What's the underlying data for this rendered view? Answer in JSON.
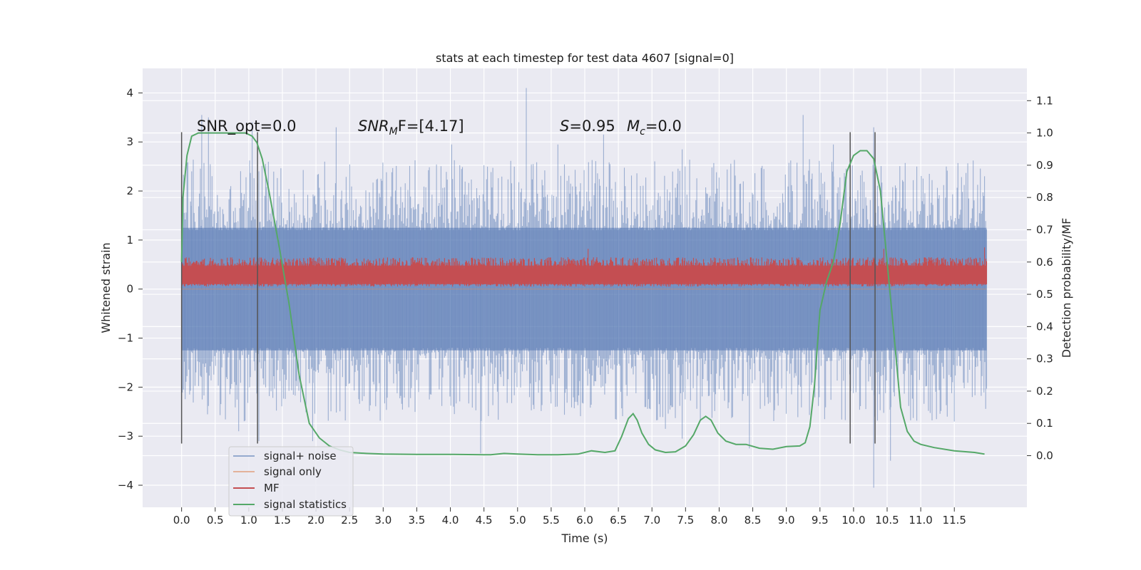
{
  "chart_data": {
    "type": "line",
    "title": "stats at each timestep for test data 4607 [signal=0]",
    "xlabel": "Time (s)",
    "ylabel": "Whitened strain",
    "y2label": "Detection probability/MF",
    "xlim": [
      -0.58,
      12.58
    ],
    "ylim": [
      -4.45,
      4.5
    ],
    "y2lim": [
      -0.16,
      1.2
    ],
    "grid": true,
    "legend_position": "lower-left",
    "x_ticks": [
      "0.0",
      "0.5",
      "1.0",
      "1.5",
      "2.0",
      "2.5",
      "3.0",
      "3.5",
      "4.0",
      "4.5",
      "5.0",
      "5.5",
      "6.0",
      "6.5",
      "7.0",
      "7.5",
      "8.0",
      "8.5",
      "9.0",
      "9.5",
      "10.0",
      "10.5",
      "11.0",
      "11.5"
    ],
    "y_ticks": [
      "4",
      "3",
      "2",
      "1",
      "0",
      "−1",
      "−2",
      "−3",
      "−4"
    ],
    "y2_ticks": [
      "1.1",
      "1.0",
      "0.9",
      "0.8",
      "0.7",
      "0.6",
      "0.5",
      "0.4",
      "0.3",
      "0.2",
      "0.1",
      "0.0"
    ],
    "annotations": {
      "snr_opt": "SNR_opt=0.0",
      "snr_mf_label": "SNR",
      "snr_mf_sub": "M",
      "snr_mf_rest": "F=[4.17]",
      "s_label": "S",
      "s_value": "=0.95",
      "mc_label": "M",
      "mc_sub": "c",
      "mc_value": "=0.0"
    },
    "legend": [
      {
        "label": "signal+ noise",
        "color": "#4c72b0"
      },
      {
        "label": "signal only",
        "color": "#dd8452"
      },
      {
        "label": "MF",
        "color": "#c44e52"
      },
      {
        "label": "signal statistics",
        "color": "#55a868"
      }
    ],
    "series": [
      {
        "name": "signal+ noise",
        "axis": "left",
        "color": "#4c72b0",
        "band_core": [
          -1.25,
          1.25
        ],
        "upper_spikes": [
          [
            0.0,
            2.2
          ],
          [
            0.15,
            2.4
          ],
          [
            0.3,
            3.55
          ],
          [
            0.4,
            3.5
          ],
          [
            1.05,
            3.4
          ],
          [
            1.15,
            2.4
          ],
          [
            2.3,
            3.3
          ],
          [
            4.02,
            2.95
          ],
          [
            5.13,
            4.1
          ],
          [
            5.6,
            2.95
          ],
          [
            6.28,
            3.15
          ],
          [
            7.45,
            2.85
          ],
          [
            9.25,
            3.55
          ],
          [
            9.7,
            2.95
          ],
          [
            10.3,
            3.3
          ],
          [
            11.7,
            2.35
          ],
          [
            11.95,
            2.3
          ]
        ],
        "lower_spikes": [
          [
            0.05,
            -2.1
          ],
          [
            0.85,
            -2.9
          ],
          [
            1.15,
            -3.1
          ],
          [
            1.95,
            -3.1
          ],
          [
            4.45,
            -3.35
          ],
          [
            7.2,
            -2.85
          ],
          [
            7.45,
            -3.05
          ],
          [
            8.45,
            -3.25
          ],
          [
            10.3,
            -4.05
          ],
          [
            10.55,
            -3.5
          ],
          [
            11.5,
            -2.7
          ]
        ]
      },
      {
        "name": "signal only",
        "axis": "left",
        "color": "#dd8452",
        "values": "flat at 0"
      },
      {
        "name": "MF",
        "axis": "left",
        "color": "#c44e52",
        "band": [
          0.05,
          0.65
        ],
        "peaks": [
          [
            0.0,
            0.75
          ],
          [
            6.05,
            0.82
          ],
          [
            10.45,
            0.82
          ],
          [
            11.95,
            0.85
          ]
        ]
      },
      {
        "name": "signal statistics",
        "axis": "right",
        "color": "#55a868",
        "x": [
          0.0,
          0.02,
          0.08,
          0.15,
          0.25,
          0.4,
          0.6,
          0.8,
          0.95,
          1.05,
          1.12,
          1.2,
          1.3,
          1.45,
          1.6,
          1.75,
          1.9,
          2.05,
          2.2,
          2.35,
          2.5,
          2.75,
          3.0,
          3.5,
          4.0,
          4.5,
          4.6,
          4.8,
          5.0,
          5.3,
          5.6,
          5.9,
          6.1,
          6.3,
          6.45,
          6.55,
          6.65,
          6.72,
          6.78,
          6.85,
          6.95,
          7.05,
          7.2,
          7.35,
          7.5,
          7.62,
          7.72,
          7.8,
          7.88,
          7.98,
          8.1,
          8.25,
          8.4,
          8.6,
          8.8,
          9.0,
          9.2,
          9.28,
          9.35,
          9.42,
          9.5,
          9.6,
          9.7,
          9.8,
          9.9,
          10.0,
          10.1,
          10.2,
          10.3,
          10.4,
          10.5,
          10.6,
          10.7,
          10.8,
          10.9,
          11.0,
          11.2,
          11.5,
          11.8,
          11.95
        ],
        "values": [
          0.6,
          0.8,
          0.93,
          0.99,
          1.0,
          1.0,
          1.0,
          1.0,
          1.0,
          0.99,
          0.97,
          0.92,
          0.82,
          0.65,
          0.47,
          0.25,
          0.1,
          0.055,
          0.03,
          0.018,
          0.01,
          0.007,
          0.005,
          0.004,
          0.004,
          0.003,
          0.003,
          0.007,
          0.005,
          0.003,
          0.003,
          0.005,
          0.015,
          0.01,
          0.015,
          0.06,
          0.115,
          0.13,
          0.11,
          0.07,
          0.035,
          0.018,
          0.01,
          0.012,
          0.03,
          0.065,
          0.11,
          0.122,
          0.11,
          0.07,
          0.045,
          0.035,
          0.035,
          0.023,
          0.02,
          0.028,
          0.03,
          0.04,
          0.09,
          0.22,
          0.45,
          0.54,
          0.6,
          0.72,
          0.88,
          0.93,
          0.945,
          0.945,
          0.92,
          0.82,
          0.6,
          0.38,
          0.15,
          0.075,
          0.045,
          0.035,
          0.025,
          0.015,
          0.01,
          0.005
        ]
      }
    ],
    "vertical_markers_x": [
      0.0,
      1.13,
      9.95,
      10.32
    ],
    "vertical_markers_y_range": [
      -3.15,
      3.2
    ]
  }
}
